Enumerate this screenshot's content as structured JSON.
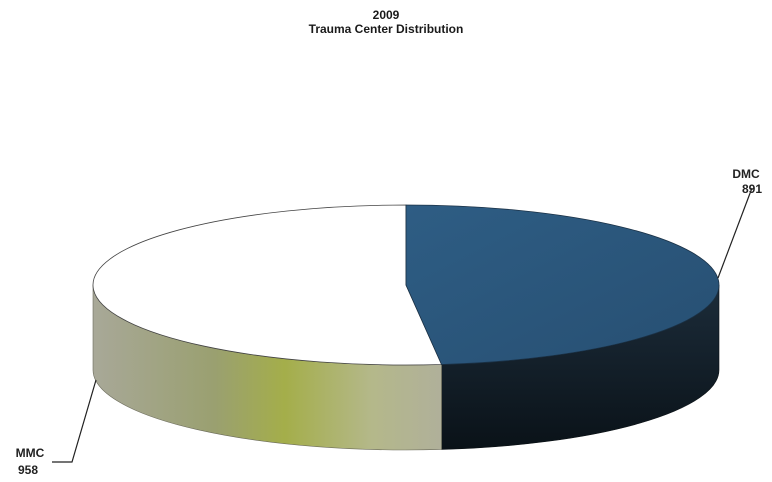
{
  "chart_data": {
    "type": "pie",
    "title": "2009",
    "subtitle": "Trauma Center Distribution",
    "three_d": true,
    "legend": "none",
    "slices": [
      {
        "label": "DMC",
        "value": 891,
        "top_color": "#2c5a80",
        "side_color": "#101b26"
      },
      {
        "label": "MMC",
        "value": 958,
        "top_color": "#ffffff",
        "side_color": "#9aa47a"
      }
    ]
  }
}
